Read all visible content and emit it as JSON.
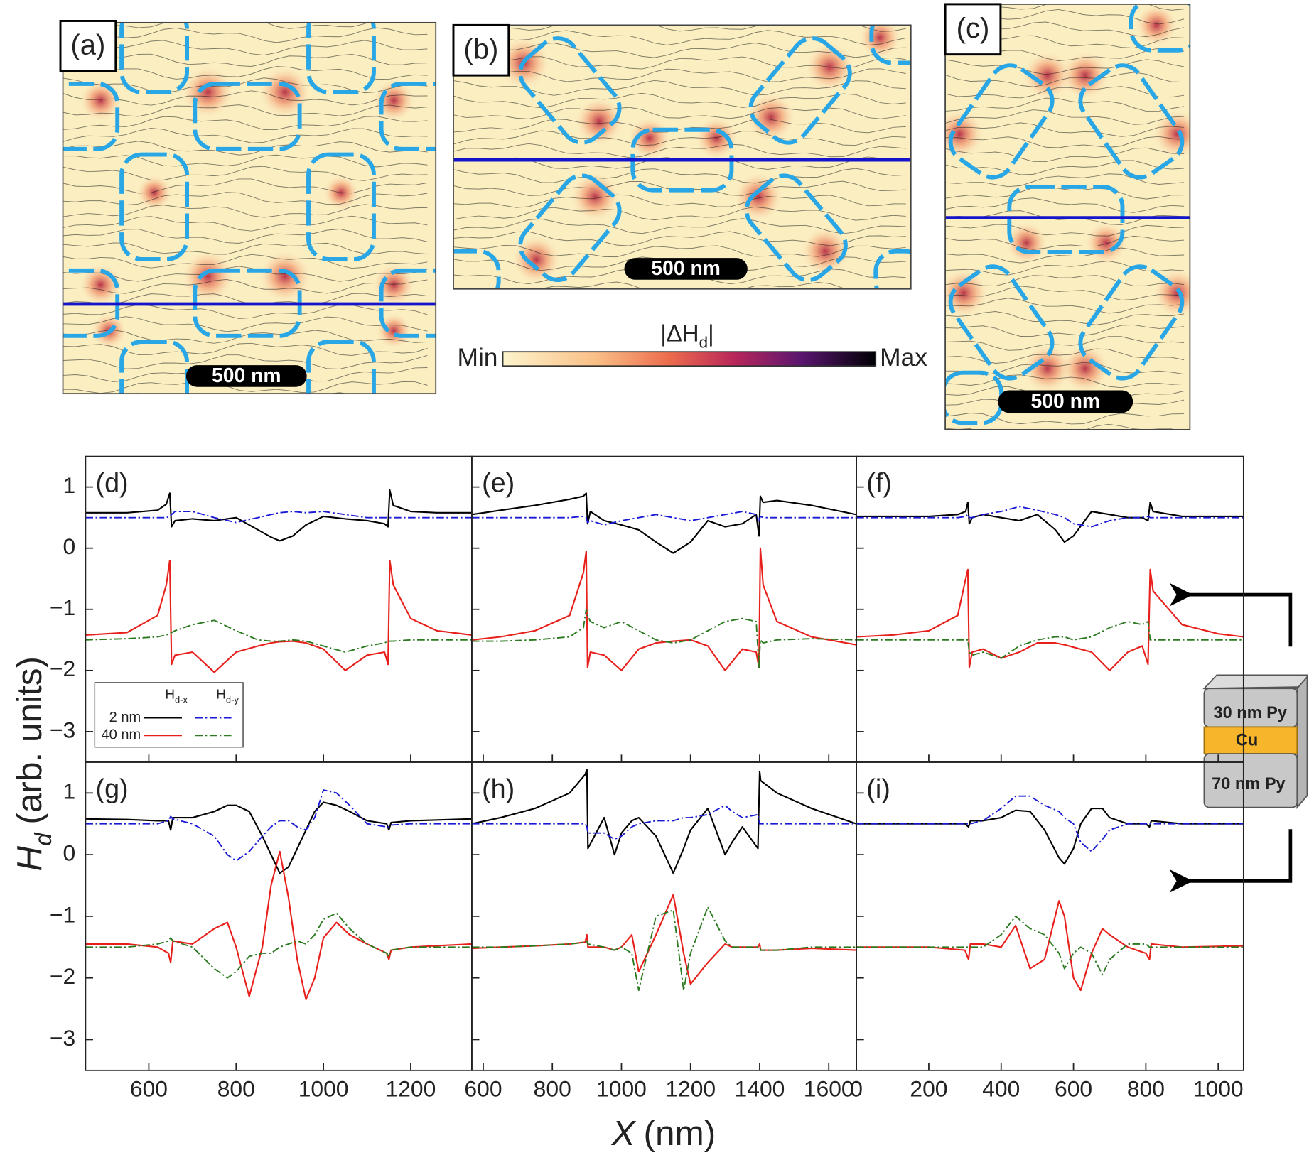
{
  "panels": [
    {
      "label": "(a)",
      "scale_bar": "500 nm"
    },
    {
      "label": "(b)",
      "scale_bar": "500 nm"
    },
    {
      "label": "(c)",
      "scale_bar": "500 nm"
    }
  ],
  "colorbar": {
    "title": [
      "|ΔH",
      "d",
      "|"
    ],
    "min_label": "Min",
    "max_label": "Max"
  },
  "axis_labels": {
    "y": {
      "symbol": "H",
      "subscript": "d",
      "text": "(arb. units)"
    },
    "x": {
      "symbol": "X",
      "text": "(nm)"
    }
  },
  "layer_stack": [
    "30 nm Py",
    "Cu",
    "70 nm Py"
  ],
  "chart_data": [
    {
      "type": "line",
      "title": "(d)",
      "xlim": [
        455,
        1340
      ],
      "ylim": [
        -3.5,
        1.5
      ],
      "xticks": [
        600,
        800,
        1000,
        1200
      ],
      "xtick_labels": false,
      "yticks": [
        1,
        0,
        {
          "value": -1,
          "label": "−1"
        },
        {
          "value": -2,
          "label": "−2"
        },
        {
          "value": -3,
          "label": "−3"
        }
      ],
      "ytick_labels": true,
      "legend": {
        "columns": [
          {
            "symbol": "H",
            "subscript": "d-x"
          },
          {
            "symbol": "H",
            "subscript": "d-y"
          }
        ],
        "rows": [
          "2 nm",
          "40 nm"
        ]
      },
      "x": [
        455,
        550,
        620,
        640,
        648,
        652,
        660,
        700,
        750,
        800,
        850,
        880,
        900,
        930,
        960,
        1000,
        1050,
        1100,
        1140,
        1148,
        1152,
        1160,
        1200,
        1260,
        1340
      ],
      "series": [
        {
          "color": "#000000",
          "style": "solid",
          "values": [
            0.58,
            0.58,
            0.62,
            0.72,
            0.9,
            0.35,
            0.45,
            0.48,
            0.45,
            0.5,
            0.3,
            0.18,
            0.12,
            0.2,
            0.38,
            0.52,
            0.48,
            0.45,
            0.4,
            0.35,
            0.95,
            0.7,
            0.6,
            0.58,
            0.58
          ]
        },
        {
          "color": "#1a1ad6",
          "style": "dashdot",
          "values": [
            0.5,
            0.5,
            0.5,
            0.5,
            0.52,
            0.55,
            0.6,
            0.6,
            0.5,
            0.42,
            0.5,
            0.55,
            0.58,
            0.6,
            0.58,
            0.6,
            0.55,
            0.5,
            0.5,
            0.5,
            0.5,
            0.5,
            0.5,
            0.5,
            0.5
          ]
        },
        {
          "color": "#e8201c",
          "style": "solid",
          "values": [
            -1.42,
            -1.38,
            -1.1,
            -0.6,
            -0.2,
            -1.9,
            -1.75,
            -1.7,
            -2.03,
            -1.7,
            -1.6,
            -1.55,
            -1.53,
            -1.52,
            -1.55,
            -1.65,
            -2.0,
            -1.75,
            -1.7,
            -1.9,
            -0.2,
            -0.6,
            -1.15,
            -1.35,
            -1.42
          ]
        },
        {
          "color": "#2b7a1f",
          "style": "dashdot",
          "values": [
            -1.5,
            -1.48,
            -1.45,
            -1.42,
            -1.4,
            -1.38,
            -1.35,
            -1.25,
            -1.18,
            -1.35,
            -1.5,
            -1.52,
            -1.52,
            -1.5,
            -1.52,
            -1.6,
            -1.7,
            -1.6,
            -1.55,
            -1.52,
            -1.52,
            -1.52,
            -1.5,
            -1.5,
            -1.5
          ]
        }
      ]
    },
    {
      "type": "line",
      "title": "(e)",
      "xlim": [
        567,
        1680
      ],
      "ylim": [
        -3.5,
        1.5
      ],
      "xticks": [
        600,
        800,
        1000,
        1200,
        1400,
        1600
      ],
      "xtick_labels": false,
      "yticks": [
        1,
        0,
        -1,
        -2,
        -3
      ],
      "ytick_labels": false,
      "x": [
        567,
        650,
        750,
        850,
        890,
        898,
        902,
        910,
        950,
        1000,
        1050,
        1100,
        1150,
        1200,
        1250,
        1300,
        1350,
        1390,
        1398,
        1402,
        1410,
        1450,
        1550,
        1680
      ],
      "series": [
        {
          "color": "#000000",
          "style": "solid",
          "values": [
            0.55,
            0.62,
            0.7,
            0.8,
            0.85,
            0.9,
            0.4,
            0.6,
            0.45,
            0.38,
            0.3,
            0.1,
            -0.08,
            0.1,
            0.45,
            0.35,
            0.4,
            0.55,
            0.2,
            0.85,
            0.75,
            0.78,
            0.7,
            0.55
          ]
        },
        {
          "color": "#1a1ad6",
          "style": "dashdot",
          "values": [
            0.5,
            0.5,
            0.5,
            0.5,
            0.52,
            0.5,
            0.42,
            0.45,
            0.38,
            0.45,
            0.5,
            0.55,
            0.5,
            0.45,
            0.5,
            0.55,
            0.6,
            0.55,
            0.45,
            0.52,
            0.5,
            0.5,
            0.5,
            0.5
          ]
        },
        {
          "color": "#e8201c",
          "style": "solid",
          "values": [
            -1.5,
            -1.45,
            -1.35,
            -1.1,
            -0.4,
            -0.05,
            -1.95,
            -1.7,
            -1.75,
            -2.0,
            -1.65,
            -1.55,
            -1.52,
            -1.5,
            -1.6,
            -2.0,
            -1.65,
            -1.7,
            -1.95,
            0,
            -0.6,
            -1.2,
            -1.45,
            -1.58
          ]
        },
        {
          "color": "#2b7a1f",
          "style": "dashdot",
          "values": [
            -1.52,
            -1.52,
            -1.5,
            -1.45,
            -1.3,
            -1.0,
            -1.1,
            -1.2,
            -1.3,
            -1.2,
            -1.35,
            -1.5,
            -1.55,
            -1.5,
            -1.35,
            -1.2,
            -1.15,
            -1.2,
            -1.95,
            -1.5,
            -1.55,
            -1.5,
            -1.48,
            -1.5
          ]
        }
      ]
    },
    {
      "type": "line",
      "title": "(f)",
      "xlim": [
        0,
        1070
      ],
      "ylim": [
        -3.5,
        1.5
      ],
      "xticks": [
        0,
        200,
        400,
        600,
        800,
        1000
      ],
      "xtick_labels": false,
      "yticks": [
        1,
        0,
        -1,
        -2,
        -3
      ],
      "ytick_labels": false,
      "x": [
        0,
        100,
        200,
        280,
        302,
        308,
        312,
        320,
        350,
        400,
        450,
        500,
        550,
        575,
        600,
        650,
        700,
        750,
        790,
        806,
        812,
        820,
        900,
        1000,
        1070
      ],
      "series": [
        {
          "color": "#000000",
          "style": "solid",
          "values": [
            0.52,
            0.52,
            0.52,
            0.55,
            0.6,
            0.75,
            0.4,
            0.5,
            0.55,
            0.5,
            0.45,
            0.55,
            0.3,
            0.1,
            0.2,
            0.6,
            0.55,
            0.5,
            0.5,
            0.45,
            0.75,
            0.6,
            0.52,
            0.52,
            0.52
          ]
        },
        {
          "color": "#1a1ad6",
          "style": "dashdot",
          "values": [
            0.5,
            0.5,
            0.5,
            0.5,
            0.52,
            0.55,
            0.5,
            0.5,
            0.55,
            0.6,
            0.68,
            0.62,
            0.55,
            0.5,
            0.4,
            0.35,
            0.45,
            0.5,
            0.5,
            0.52,
            0.5,
            0.5,
            0.5,
            0.5,
            0.5
          ]
        },
        {
          "color": "#e8201c",
          "style": "solid",
          "values": [
            -1.45,
            -1.42,
            -1.35,
            -1.1,
            -0.5,
            -0.35,
            -1.95,
            -1.7,
            -1.65,
            -1.8,
            -1.7,
            -1.55,
            -1.55,
            -1.58,
            -1.62,
            -1.7,
            -2.0,
            -1.7,
            -1.6,
            -1.9,
            -0.35,
            -0.7,
            -1.25,
            -1.4,
            -1.45
          ]
        },
        {
          "color": "#2b7a1f",
          "style": "dashdot",
          "values": [
            -1.5,
            -1.5,
            -1.5,
            -1.5,
            -1.5,
            -1.5,
            -1.7,
            -1.75,
            -1.7,
            -1.8,
            -1.6,
            -1.5,
            -1.45,
            -1.45,
            -1.5,
            -1.45,
            -1.3,
            -1.2,
            -1.25,
            -1.2,
            -1.5,
            -1.5,
            -1.5,
            -1.5,
            -1.5
          ]
        }
      ]
    },
    {
      "type": "line",
      "title": "(g)",
      "xlim": [
        455,
        1340
      ],
      "ylim": [
        -3.5,
        1.5
      ],
      "xticks": [
        600,
        800,
        1000,
        1200
      ],
      "xtick_labels": true,
      "yticks": [
        1,
        0,
        {
          "value": -1,
          "label": "−1"
        },
        {
          "value": -2,
          "label": "−2"
        },
        {
          "value": -3,
          "label": "−3"
        }
      ],
      "ytick_labels": true,
      "x": [
        455,
        550,
        620,
        645,
        650,
        655,
        700,
        750,
        780,
        800,
        830,
        860,
        880,
        900,
        920,
        940,
        960,
        980,
        1000,
        1030,
        1060,
        1100,
        1145,
        1150,
        1155,
        1200,
        1340
      ],
      "series": [
        {
          "color": "#000000",
          "style": "solid",
          "values": [
            0.58,
            0.57,
            0.55,
            0.55,
            0.4,
            0.6,
            0.6,
            0.7,
            0.8,
            0.8,
            0.7,
            0.3,
            0,
            -0.3,
            -0.2,
            0.1,
            0.4,
            0.7,
            0.85,
            0.8,
            0.7,
            0.55,
            0.5,
            0.4,
            0.52,
            0.55,
            0.58
          ]
        },
        {
          "color": "#1a1ad6",
          "style": "dashdot",
          "values": [
            0.5,
            0.5,
            0.5,
            0.55,
            0.62,
            0.58,
            0.5,
            0.3,
            0,
            -0.1,
            0.05,
            0.3,
            0.45,
            0.55,
            0.55,
            0.45,
            0.4,
            0.6,
            1.05,
            1.0,
            0.8,
            0.5,
            0.45,
            0.45,
            0.48,
            0.5,
            0.5
          ]
        },
        {
          "color": "#e8201c",
          "style": "solid",
          "values": [
            -1.45,
            -1.45,
            -1.5,
            -1.6,
            -1.75,
            -1.4,
            -1.45,
            -1.2,
            -1.1,
            -1.5,
            -2.3,
            -1.5,
            -0.5,
            0.05,
            -0.7,
            -1.7,
            -2.35,
            -2.0,
            -1.35,
            -1.1,
            -1.3,
            -1.45,
            -1.6,
            -1.7,
            -1.55,
            -1.5,
            -1.45
          ]
        },
        {
          "color": "#2b7a1f",
          "style": "dashdot",
          "values": [
            -1.5,
            -1.5,
            -1.45,
            -1.4,
            -1.35,
            -1.4,
            -1.5,
            -1.85,
            -2.0,
            -1.9,
            -1.65,
            -1.6,
            -1.6,
            -1.5,
            -1.45,
            -1.4,
            -1.45,
            -1.3,
            -1.05,
            -0.95,
            -1.2,
            -1.45,
            -1.6,
            -1.65,
            -1.55,
            -1.5,
            -1.5
          ]
        }
      ]
    },
    {
      "type": "line",
      "title": "(h)",
      "xlim": [
        567,
        1680
      ],
      "ylim": [
        -3.5,
        1.5
      ],
      "xticks": [
        600,
        800,
        1000,
        1200,
        1400,
        1600
      ],
      "xtick_labels": true,
      "yticks": [
        1,
        0,
        -1,
        -2,
        -3
      ],
      "ytick_labels": false,
      "x": [
        567,
        650,
        750,
        850,
        895,
        900,
        903,
        950,
        980,
        1000,
        1030,
        1050,
        1100,
        1150,
        1180,
        1200,
        1250,
        1300,
        1320,
        1350,
        1395,
        1400,
        1403,
        1450,
        1550,
        1680
      ],
      "series": [
        {
          "color": "#000000",
          "style": "solid",
          "values": [
            0.5,
            0.6,
            0.75,
            1.0,
            1.3,
            1.38,
            0.1,
            0.6,
            0,
            0.35,
            0.55,
            0.6,
            0.3,
            -0.3,
            0.1,
            0.4,
            0.75,
            0,
            0.2,
            0.45,
            0.1,
            1.35,
            1.2,
            1.0,
            0.75,
            0.5
          ]
        },
        {
          "color": "#1a1ad6",
          "style": "dashdot",
          "values": [
            0.5,
            0.5,
            0.5,
            0.5,
            0.5,
            0.45,
            0.35,
            0.35,
            0.25,
            0.3,
            0.45,
            0.5,
            0.55,
            0.55,
            0.6,
            0.6,
            0.65,
            0.8,
            0.7,
            0.6,
            0.65,
            0.5,
            0.5,
            0.5,
            0.5,
            0.5
          ]
        },
        {
          "color": "#e8201c",
          "style": "solid",
          "values": [
            -1.52,
            -1.5,
            -1.48,
            -1.45,
            -1.42,
            -1.3,
            -1.5,
            -1.5,
            -1.55,
            -1.5,
            -1.3,
            -1.9,
            -1.3,
            -0.65,
            -1.6,
            -2.1,
            -1.75,
            -1.45,
            -1.5,
            -1.5,
            -1.5,
            -1.45,
            -1.55,
            -1.55,
            -1.52,
            -1.55
          ]
        },
        {
          "color": "#2b7a1f",
          "style": "dashdot",
          "values": [
            -1.5,
            -1.5,
            -1.48,
            -1.45,
            -1.42,
            -1.4,
            -1.45,
            -1.5,
            -1.55,
            -1.5,
            -1.6,
            -2.2,
            -1.0,
            -0.9,
            -2.2,
            -1.6,
            -0.85,
            -1.4,
            -1.5,
            -1.5,
            -1.5,
            -1.5,
            -1.55,
            -1.55,
            -1.5,
            -1.5
          ]
        }
      ]
    },
    {
      "type": "line",
      "title": "(i)",
      "xlim": [
        0,
        1070
      ],
      "ylim": [
        -3.5,
        1.5
      ],
      "xticks": [
        0,
        200,
        400,
        600,
        800,
        1000
      ],
      "xtick_labels": true,
      "yticks": [
        1,
        0,
        -1,
        -2,
        -3
      ],
      "ytick_labels": false,
      "x": [
        0,
        100,
        200,
        300,
        310,
        315,
        350,
        400,
        440,
        480,
        520,
        560,
        575,
        600,
        620,
        650,
        680,
        700,
        750,
        800,
        810,
        815,
        900,
        1070
      ],
      "series": [
        {
          "color": "#000000",
          "style": "solid",
          "values": [
            0.5,
            0.5,
            0.5,
            0.5,
            0.45,
            0.55,
            0.55,
            0.6,
            0.72,
            0.7,
            0.4,
            -0.05,
            -0.15,
            0.1,
            0.5,
            0.75,
            0.75,
            0.6,
            0.5,
            0.5,
            0.45,
            0.55,
            0.5,
            0.5
          ]
        },
        {
          "color": "#1a1ad6",
          "style": "dashdot",
          "values": [
            0.5,
            0.5,
            0.5,
            0.5,
            0.5,
            0.5,
            0.55,
            0.75,
            0.95,
            0.95,
            0.8,
            0.7,
            0.6,
            0.5,
            0.2,
            0.05,
            0.25,
            0.4,
            0.5,
            0.5,
            0.5,
            0.5,
            0.5,
            0.5
          ]
        },
        {
          "color": "#e8201c",
          "style": "solid",
          "values": [
            -1.5,
            -1.5,
            -1.5,
            -1.55,
            -1.7,
            -1.45,
            -1.45,
            -1.5,
            -1.15,
            -1.85,
            -1.7,
            -0.75,
            -1.0,
            -2.0,
            -2.2,
            -1.6,
            -1.2,
            -1.3,
            -1.5,
            -1.6,
            -1.7,
            -1.45,
            -1.5,
            -1.48
          ]
        },
        {
          "color": "#2b7a1f",
          "style": "dashdot",
          "values": [
            -1.5,
            -1.5,
            -1.5,
            -1.5,
            -1.5,
            -1.5,
            -1.5,
            -1.3,
            -1.0,
            -1.2,
            -1.3,
            -1.6,
            -1.85,
            -1.6,
            -1.5,
            -1.6,
            -1.95,
            -1.7,
            -1.45,
            -1.45,
            -1.5,
            -1.5,
            -1.5,
            -1.5
          ]
        }
      ]
    }
  ]
}
